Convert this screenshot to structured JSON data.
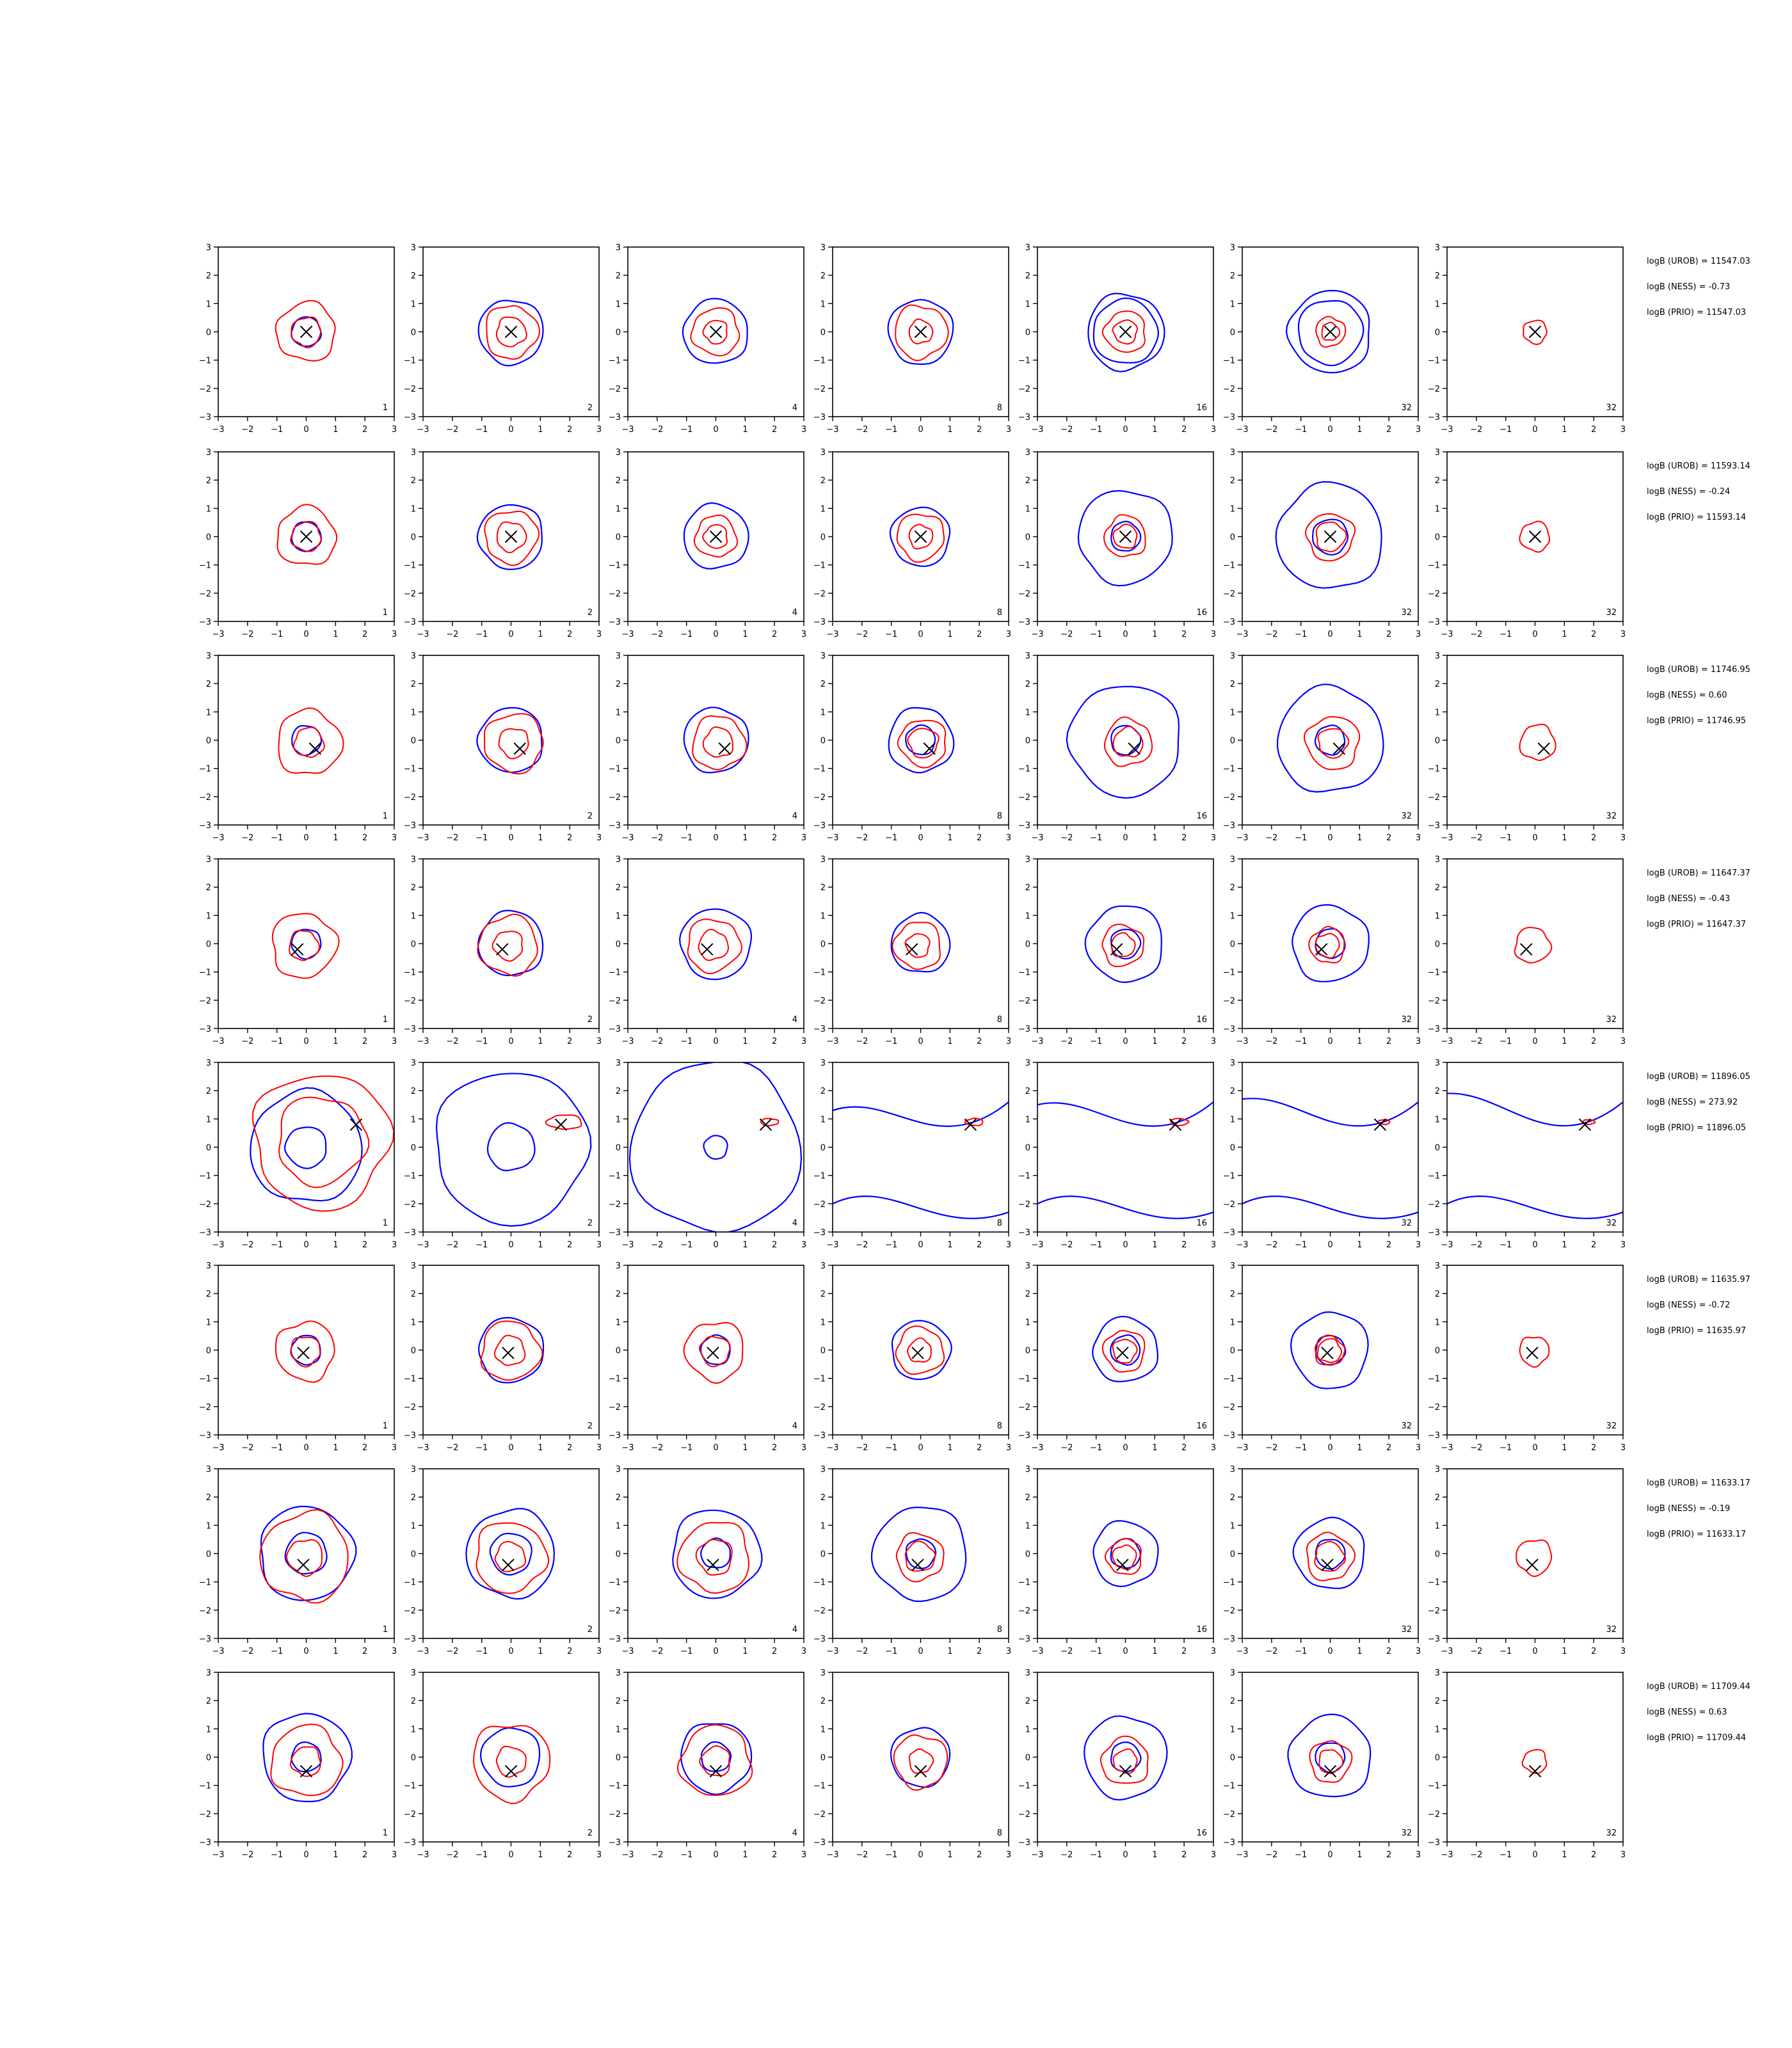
{
  "chart_data": {
    "type": "contour",
    "panel_axes": {
      "xlim": [
        -3,
        3
      ],
      "ylim": [
        -3,
        3
      ],
      "xticks": [
        "−3",
        "−2",
        "−1",
        "0",
        "1",
        "2",
        "3"
      ],
      "yticks": [
        "−3",
        "−2",
        "−1",
        "0",
        "1",
        "2",
        "3"
      ]
    },
    "series_colors": {
      "blue": "#0000ff",
      "red": "#ff0000",
      "marker": "#000000"
    },
    "grid": false,
    "legend": "none",
    "column_labels": [
      "1",
      "2",
      "4",
      "8",
      "16",
      "32",
      "32"
    ],
    "rows": [
      {
        "marker": [
          0,
          0
        ],
        "blue_radius": [
          0.5,
          1.1,
          1.1,
          1.1,
          1.1,
          1.1,
          0
        ],
        "outer_blue_radius": [
          0,
          0,
          0,
          0,
          1.3,
          1.4,
          0
        ],
        "red_radius": [
          [
            0.5,
            1.0
          ],
          [
            0.5,
            0.9
          ],
          [
            0.4,
            0.8
          ],
          [
            0.4,
            0.9
          ],
          [
            0.4,
            0.7
          ],
          [
            0.3,
            0.5
          ],
          [
            0.4
          ]
        ],
        "annotations": [
          "logB (UROB) = 11547.03",
          "logB (NESS) = -0.73",
          "logB (PRIO) = 11547.03"
        ]
      },
      {
        "marker": [
          0,
          0
        ],
        "blue_radius": [
          0.5,
          1.1,
          1.1,
          1.0,
          0.5,
          0.6,
          0
        ],
        "outer_blue_radius": [
          0,
          0,
          0,
          0,
          1.6,
          1.8,
          0
        ],
        "red_radius": [
          [
            0.5,
            1.0
          ],
          [
            0.5,
            0.9
          ],
          [
            0.4,
            0.7
          ],
          [
            0.4,
            0.8
          ],
          [
            0.4,
            0.7
          ],
          [
            0.5,
            0.8
          ],
          [
            0.5
          ]
        ],
        "annotations": [
          "logB (UROB) = 11593.14",
          "logB (NESS) = -0.24",
          "logB (PRIO) = 11593.14"
        ]
      },
      {
        "marker": [
          0.3,
          -0.3
        ],
        "blue_radius": [
          0.5,
          1.1,
          1.1,
          0.5,
          0.5,
          0.5,
          0
        ],
        "outer_blue_radius": [
          0,
          0,
          0,
          1.1,
          1.9,
          1.8,
          0
        ],
        "red_radius": [
          [
            0.5,
            1.1
          ],
          [
            0.5,
            1.0
          ],
          [
            0.5,
            0.9
          ],
          [
            0.5,
            0.8
          ],
          [
            0.5,
            0.8
          ],
          [
            0.5,
            0.9
          ],
          [
            0.6
          ]
        ],
        "annotations": [
          "logB (UROB) = 11746.95",
          "logB (NESS) = 0.60",
          "logB (PRIO) = 11746.95"
        ]
      },
      {
        "marker": [
          -0.3,
          -0.2
        ],
        "blue_radius": [
          0.5,
          1.1,
          1.2,
          1.0,
          0.5,
          0.5,
          0
        ],
        "outer_blue_radius": [
          0,
          0,
          0,
          0,
          1.3,
          1.3,
          0
        ],
        "red_radius": [
          [
            0.5,
            1.1
          ],
          [
            0.5,
            1.0
          ],
          [
            0.5,
            0.9
          ],
          [
            0.4,
            0.8
          ],
          [
            0.4,
            0.7
          ],
          [
            0.4,
            0.6
          ],
          [
            0.6
          ]
        ],
        "annotations": [
          "logB (UROB) = 11647.37",
          "logB (NESS) = -0.43",
          "logB (PRIO) = 11647.37"
        ]
      },
      {
        "marker": [
          1.7,
          0.8
        ],
        "blue_radius": [
          0.7,
          0.8,
          0.4,
          0,
          0,
          0,
          0
        ],
        "outer_blue_radius": [
          1.9,
          2.6,
          2.9,
          0,
          0,
          0,
          0
        ],
        "red_radius": [
          [
            1.5,
            2.3
          ],
          [
            0.6
          ],
          [
            0.3
          ],
          [
            0.3
          ],
          [
            0.3
          ],
          [
            0.2
          ],
          [
            0.2
          ]
        ],
        "annotations": [
          "logB (UROB) = 11896.05",
          "logB (NESS) = 273.92",
          "logB (PRIO) = 11896.05"
        ]
      },
      {
        "marker": [
          -0.1,
          -0.1
        ],
        "blue_radius": [
          0.5,
          1.1,
          0.5,
          1.0,
          0.5,
          0.5,
          0
        ],
        "outer_blue_radius": [
          0,
          0,
          0,
          0,
          1.1,
          1.3,
          0
        ],
        "red_radius": [
          [
            0.5,
            1.0
          ],
          [
            0.5,
            1.0
          ],
          [
            0.5,
            1.0
          ],
          [
            0.4,
            0.8
          ],
          [
            0.4,
            0.7
          ],
          [
            0.4,
            0.5
          ],
          [
            0.5
          ]
        ],
        "annotations": [
          "logB (UROB) = 11635.97",
          "logB (NESS) = -0.72",
          "logB (PRIO) = 11635.97"
        ]
      },
      {
        "marker": [
          -0.1,
          -0.4
        ],
        "blue_radius": [
          0.7,
          0.7,
          0.5,
          0.5,
          0.5,
          0.5,
          0
        ],
        "outer_blue_radius": [
          1.6,
          1.5,
          1.5,
          1.6,
          1.1,
          1.2,
          0
        ],
        "red_radius": [
          [
            0.6,
            1.5
          ],
          [
            0.5,
            1.2
          ],
          [
            0.6,
            1.2
          ],
          [
            0.5,
            0.8
          ],
          [
            0.4,
            0.6
          ],
          [
            0.5,
            0.8
          ],
          [
            0.6
          ]
        ],
        "annotations": [
          "logB (UROB) = 11633.17",
          "logB (NESS) = -0.19",
          "logB (PRIO) = 11633.17"
        ]
      },
      {
        "marker": [
          0,
          -0.5
        ],
        "blue_radius": [
          0.5,
          1.0,
          0.5,
          1.0,
          0.5,
          0.5,
          0
        ],
        "outer_blue_radius": [
          1.5,
          0,
          1.2,
          0,
          1.4,
          1.4,
          0
        ],
        "red_radius": [
          [
            0.5,
            1.2
          ],
          [
            0.5,
            1.3
          ],
          [
            0.5,
            1.2
          ],
          [
            0.4,
            0.9
          ],
          [
            0.4,
            0.8
          ],
          [
            0.4,
            0.7
          ],
          [
            0.4
          ]
        ],
        "annotations": [
          "logB (UROB) = 11709.44",
          "logB (NESS) = 0.63",
          "logB (PRIO) = 11709.44"
        ]
      }
    ]
  }
}
